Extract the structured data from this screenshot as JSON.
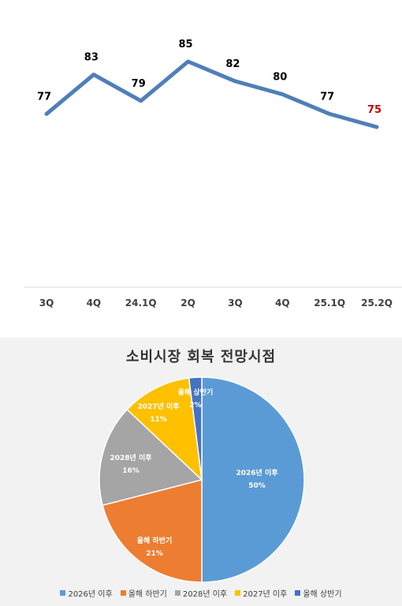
{
  "chart_data": [
    {
      "type": "line",
      "categories": [
        "3Q",
        "4Q",
        "24.1Q",
        "2Q",
        "3Q",
        "4Q",
        "25.1Q",
        "25.2Q"
      ],
      "values": [
        77,
        83,
        79,
        85,
        82,
        80,
        77,
        75
      ],
      "data_labels": [
        "77",
        "83",
        "79",
        "85",
        "82",
        "80",
        "77",
        "75"
      ],
      "title": "",
      "xlabel": "",
      "ylabel": "",
      "grid": false,
      "line_color": "#4f7fb8",
      "highlight_last_label_color": "#c00000"
    },
    {
      "type": "pie",
      "title": "소비시장 회복 전망시점",
      "slices": [
        {
          "label": "2026년 이후",
          "value": 50,
          "pct_label": "50%",
          "color": "#5b9bd5"
        },
        {
          "label": "올해 하반기",
          "value": 21,
          "pct_label": "21%",
          "color": "#ed7d31"
        },
        {
          "label": "2028년 이후",
          "value": 16,
          "pct_label": "16%",
          "color": "#a5a5a5"
        },
        {
          "label": "2027년 이후",
          "value": 11,
          "pct_label": "11%",
          "color": "#ffc000"
        },
        {
          "label": "올해 상반기",
          "value": 2,
          "pct_label": "2%",
          "color": "#4472c4"
        }
      ],
      "legend": [
        "2026년 이후",
        "올해 하반기",
        "2028년 이후",
        "2027년 이후",
        "올해 상반기"
      ],
      "legend_position": "bottom"
    }
  ]
}
